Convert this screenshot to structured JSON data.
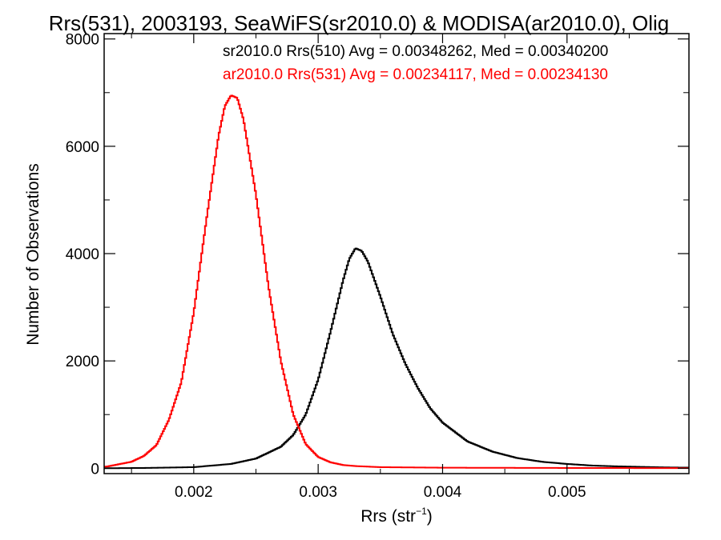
{
  "chart_data": {
    "type": "line",
    "title": "Rrs(531), 2003193, SeaWiFS(sr2010.0) & MODISA(ar2010.0), Olig",
    "xlabel_main": "Rrs (str",
    "xlabel_sup": "−1",
    "xlabel_tail": ")",
    "ylabel": "Number of Observations",
    "xlim": [
      0.00128,
      0.00598
    ],
    "ylim": [
      -100,
      8100
    ],
    "x_ticks": [
      0.002,
      0.003,
      0.004,
      0.005
    ],
    "x_tick_labels": [
      "0.002",
      "0.003",
      "0.004",
      "0.005"
    ],
    "y_ticks": [
      0,
      2000,
      4000,
      6000,
      8000
    ],
    "y_tick_labels": [
      "0",
      "2000",
      "4000",
      "6000",
      "8000"
    ],
    "grid": false,
    "legend_position": "top-right",
    "series": [
      {
        "name": "sr2010.0 Rrs(510)",
        "legend": "sr2010.0 Rrs(510) Avg = 0.00348262, Med = 0.00340200",
        "color": "#000000",
        "x": [
          0.0013,
          0.0016,
          0.002,
          0.0023,
          0.0025,
          0.0027,
          0.0028,
          0.0029,
          0.003,
          0.0031,
          0.0032,
          0.00325,
          0.0033,
          0.00335,
          0.0034,
          0.0035,
          0.0036,
          0.0037,
          0.0038,
          0.0039,
          0.004,
          0.0042,
          0.0044,
          0.0046,
          0.0048,
          0.005,
          0.0052,
          0.0054,
          0.0056,
          0.0058,
          0.006
        ],
        "y": [
          0,
          5,
          20,
          80,
          180,
          400,
          620,
          1000,
          1650,
          2550,
          3500,
          3900,
          4100,
          4050,
          3850,
          3200,
          2500,
          1950,
          1500,
          1120,
          850,
          500,
          310,
          190,
          120,
          80,
          50,
          35,
          25,
          15,
          10
        ]
      },
      {
        "name": "ar2010.0 Rrs(531)",
        "legend": "ar2010.0 Rrs(531) Avg = 0.00234117, Med = 0.00234130",
        "color": "#ff0000",
        "x": [
          0.0013,
          0.0015,
          0.0016,
          0.0017,
          0.0018,
          0.0019,
          0.002,
          0.0021,
          0.0022,
          0.00225,
          0.0023,
          0.00235,
          0.0024,
          0.0025,
          0.0026,
          0.0027,
          0.0028,
          0.0029,
          0.003,
          0.0031,
          0.0032,
          0.0033,
          0.0035,
          0.004,
          0.005,
          0.006
        ],
        "y": [
          30,
          120,
          230,
          430,
          900,
          1600,
          2900,
          4600,
          6200,
          6750,
          6950,
          6900,
          6500,
          5100,
          3400,
          2000,
          1000,
          450,
          210,
          110,
          60,
          40,
          20,
          10,
          5,
          2
        ]
      }
    ]
  }
}
